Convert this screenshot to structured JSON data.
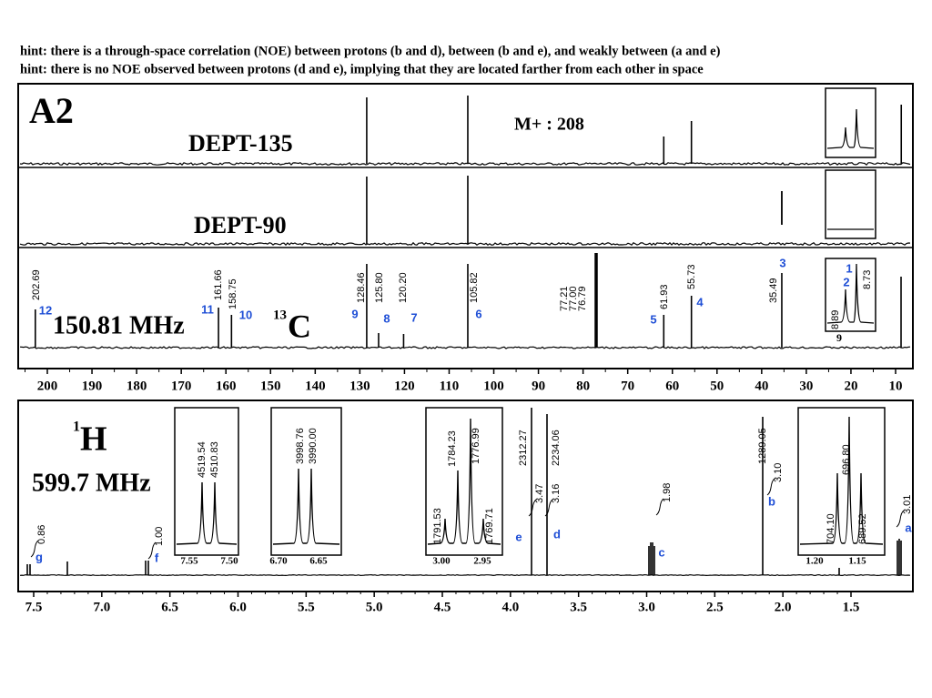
{
  "hints": [
    "hint: there is a through-space correlation (NOE) between protons (b and d), between (b and e), and weakly between (a and e)",
    "hint: there is no NOE observed between protons (d and e), implying that they are located farther from each other in space"
  ],
  "carbon": {
    "panel_label": "A2",
    "dept135": "DEPT-135",
    "dept90": "DEPT-90",
    "mass": "M+ : 208",
    "frequency": "150.81 MHz",
    "isotope": "13",
    "element": "C",
    "peaks": [
      {
        "shift": "202.69",
        "label": "12"
      },
      {
        "shift": "161.66",
        "label": "11"
      },
      {
        "shift": "158.75",
        "label": "10"
      },
      {
        "shift": "128.46",
        "label": "9"
      },
      {
        "shift": "125.80",
        "label": "8"
      },
      {
        "shift": "120.20",
        "label": "7"
      },
      {
        "shift": "105.82",
        "label": "6"
      },
      {
        "shift": "61.93",
        "label": "5"
      },
      {
        "shift": "55.73",
        "label": "4"
      },
      {
        "shift": "35.49",
        "label": "3"
      }
    ],
    "solvent": [
      "77.21",
      "77.00",
      "76.79"
    ],
    "inset": {
      "shifts": [
        "8.89",
        "8.73"
      ],
      "labels": [
        "2",
        "1"
      ],
      "extra": "9"
    },
    "axis": [
      "200",
      "190",
      "180",
      "170",
      "160",
      "150",
      "140",
      "130",
      "120",
      "110",
      "100",
      "90",
      "80",
      "70",
      "60",
      "50",
      "40",
      "30",
      "20",
      "10"
    ]
  },
  "proton": {
    "isotope": "1",
    "element": "H",
    "frequency": "599.7 MHz",
    "signals": [
      {
        "label": "g",
        "integral": "0.86"
      },
      {
        "label": "f",
        "integral": "1.00"
      },
      {
        "label": "e",
        "integral": "3.47",
        "hz": "2312.27"
      },
      {
        "label": "d",
        "integral": "3.16",
        "hz": "2234.06"
      },
      {
        "label": "c",
        "integral": "1.98"
      },
      {
        "label": "b",
        "integral": "3.10",
        "hz": "1289.05"
      },
      {
        "label": "a",
        "integral": "3.01"
      }
    ],
    "insets": [
      {
        "hz": [
          "4519.54",
          "4510.83"
        ],
        "axis": [
          "7.55",
          "7.50"
        ]
      },
      {
        "hz": [
          "3998.76",
          "3990.00"
        ],
        "axis": [
          "6.70",
          "6.65"
        ]
      },
      {
        "hz": [
          "1791.53",
          "1784.23",
          "1776.99",
          "1769.71"
        ],
        "axis": [
          "3.00",
          "2.95"
        ]
      },
      {
        "hz": [
          "704.10",
          "696.80",
          "689.52"
        ],
        "axis": [
          "1.20",
          "1.15"
        ]
      }
    ],
    "axis": [
      "7.5",
      "7.0",
      "6.5",
      "6.0",
      "5.5",
      "5.0",
      "4.5",
      "4.0",
      "3.5",
      "3.0",
      "2.5",
      "2.0",
      "1.5"
    ]
  }
}
